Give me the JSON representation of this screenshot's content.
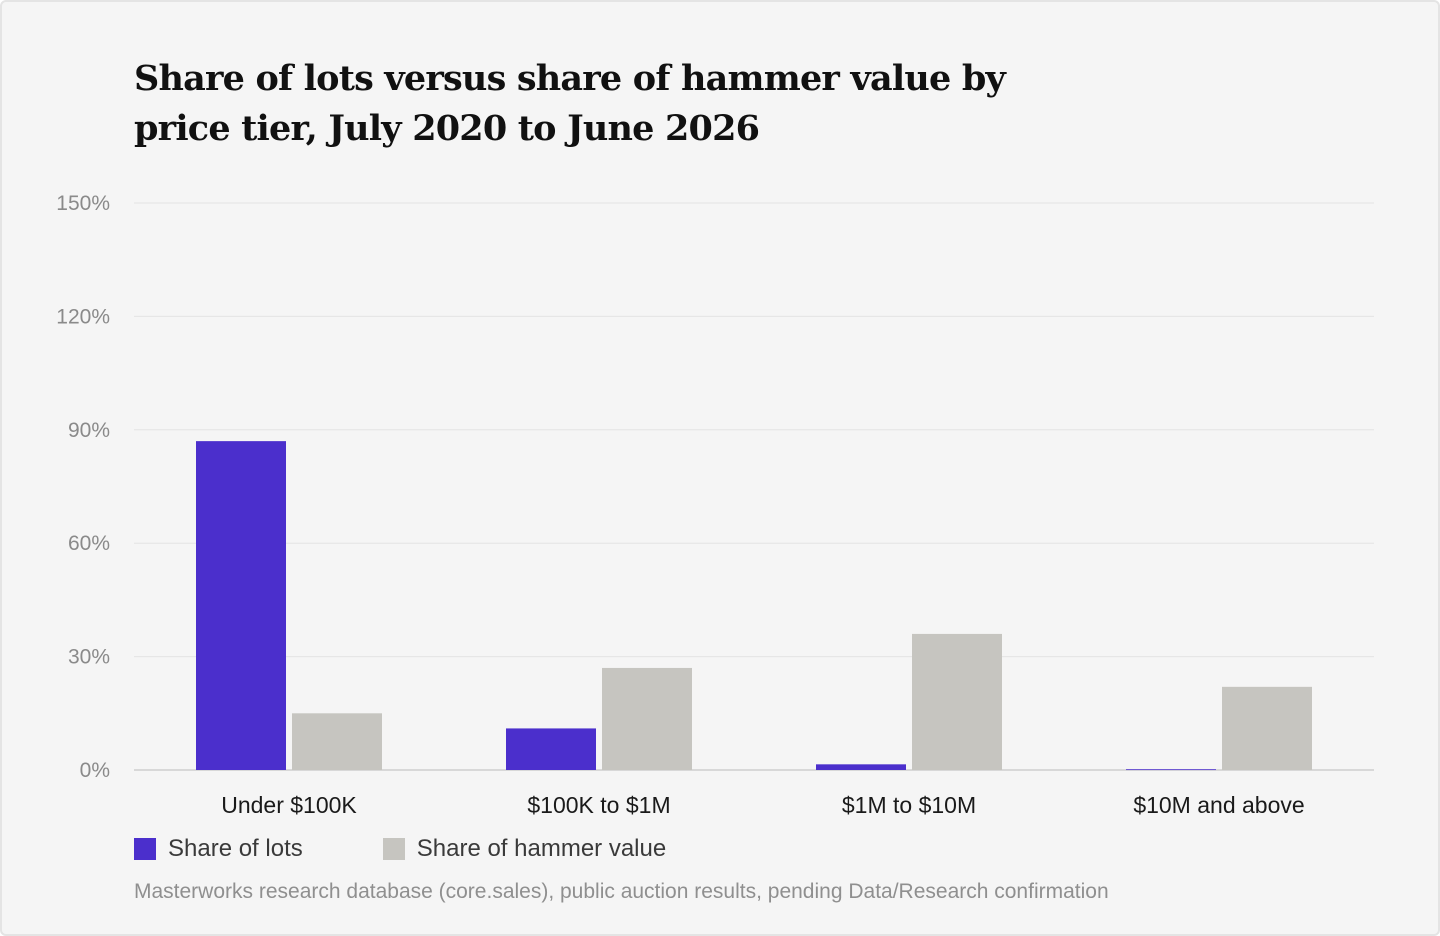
{
  "chart_data": {
    "type": "bar",
    "title": "Share of lots versus share of hammer value by price tier, July 2020 to June 2026",
    "categories": [
      "Under $100K",
      "$100K to $1M",
      "$1M to $10M",
      "$10M and above"
    ],
    "series": [
      {
        "name": "Share of lots",
        "values": [
          87,
          11,
          1.5,
          0.2
        ],
        "color": "#4b2fcc"
      },
      {
        "name": "Share of hammer value",
        "values": [
          15,
          27,
          36,
          22
        ],
        "color": "#c6c5c0"
      }
    ],
    "ylim": [
      0,
      150
    ],
    "yticks": [
      0,
      30,
      60,
      90,
      120,
      150
    ],
    "ytick_labels": [
      "0%",
      "30%",
      "60%",
      "90%",
      "120%",
      "150%"
    ],
    "grid": true,
    "legend_position": "bottom-left",
    "xlabel": "",
    "ylabel": ""
  },
  "source": "Masterworks research database (core.sales), public auction results, pending Data/Research confirmation"
}
